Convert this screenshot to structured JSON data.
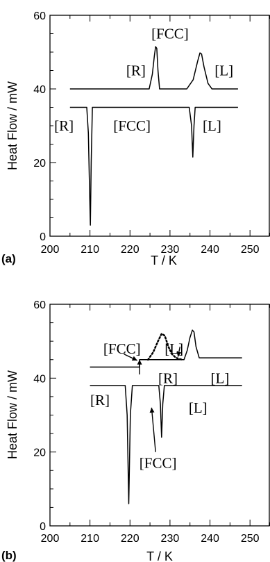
{
  "chart_data": [
    {
      "type": "line",
      "panel_label": "(a)",
      "xlabel": "T / K",
      "ylabel": "Heat Flow / mW",
      "xlim": [
        200,
        255
      ],
      "ylim": [
        0,
        60
      ],
      "xticks": [
        200,
        210,
        220,
        230,
        240,
        250
      ],
      "yticks": [
        0,
        20,
        40,
        60
      ],
      "series": [
        {
          "style": "solid",
          "x": [
            205,
            224.8,
            225.6,
            226.1,
            226.4,
            226.7,
            227.0,
            227.4,
            234.2,
            235.8,
            236.9,
            237.5,
            237.9,
            238.5,
            239.5,
            240.5,
            247
          ],
          "y": [
            40,
            40,
            44,
            49,
            51.5,
            51,
            45,
            40,
            40,
            42.5,
            47.5,
            49.8,
            49.5,
            46,
            41.5,
            40,
            40
          ]
        },
        {
          "style": "solid",
          "x": [
            205,
            209.2,
            209.6,
            209.9,
            210.1,
            210.3,
            210.6,
            234.8,
            235.4,
            235.7,
            236.0,
            236.3,
            247
          ],
          "y": [
            35,
            35,
            28,
            12,
            3,
            20,
            35,
            35,
            30,
            21.5,
            30,
            35,
            35
          ]
        }
      ],
      "annotations": [
        {
          "text": "[R]",
          "x": 221.5,
          "y": 45
        },
        {
          "text": "[FCC]",
          "x": 230,
          "y": 55
        },
        {
          "text": "[L]",
          "x": 243.5,
          "y": 45
        },
        {
          "text": "[R]",
          "x": 203.5,
          "y": 30
        },
        {
          "text": "[FCC]",
          "x": 220.5,
          "y": 30
        },
        {
          "text": "[L]",
          "x": 240.5,
          "y": 30
        }
      ]
    },
    {
      "type": "line",
      "panel_label": "(b)",
      "xlabel": "T / K",
      "ylabel": "Heat Flow / mW",
      "xlim": [
        200,
        255
      ],
      "ylim": [
        0,
        60
      ],
      "xticks": [
        200,
        210,
        220,
        230,
        240,
        250
      ],
      "yticks": [
        0,
        20,
        40,
        60
      ],
      "series": [
        {
          "style": "solid",
          "x": [
            210,
            222.4,
            222.4,
            233.5,
            234.3,
            235.0,
            235.6,
            236.0,
            236.5,
            237.3,
            248
          ],
          "y": [
            43,
            43,
            45,
            45,
            47.5,
            51,
            53,
            52.5,
            48.5,
            45.5,
            45.5
          ]
        },
        {
          "style": "dotted",
          "x": [
            224.5,
            225.8,
            227.0,
            227.9,
            228.7,
            229.6,
            230.5,
            231.5,
            233.0
          ],
          "y": [
            45,
            47,
            50,
            52,
            51.5,
            48.5,
            46.5,
            45.5,
            45
          ]
        },
        {
          "style": "solid",
          "x": [
            210,
            218.8,
            219.3,
            219.7,
            220.1,
            220.6,
            227.2,
            227.6,
            227.9,
            228.2,
            228.6,
            248
          ],
          "y": [
            38,
            38,
            30,
            6,
            30,
            38,
            38,
            33,
            24,
            33,
            38,
            38
          ]
        }
      ],
      "annotations": [
        {
          "text": "[FCC]",
          "x": 218,
          "y": 48
        },
        {
          "text": "[L]",
          "x": 231,
          "y": 48
        },
        {
          "text": "[R]",
          "x": 229.5,
          "y": 40
        },
        {
          "text": "[L]",
          "x": 242.5,
          "y": 40
        },
        {
          "text": "[R]",
          "x": 212.5,
          "y": 34
        },
        {
          "text": "[L]",
          "x": 237,
          "y": 32
        },
        {
          "text": "[FCC]",
          "x": 227,
          "y": 17
        }
      ]
    }
  ]
}
